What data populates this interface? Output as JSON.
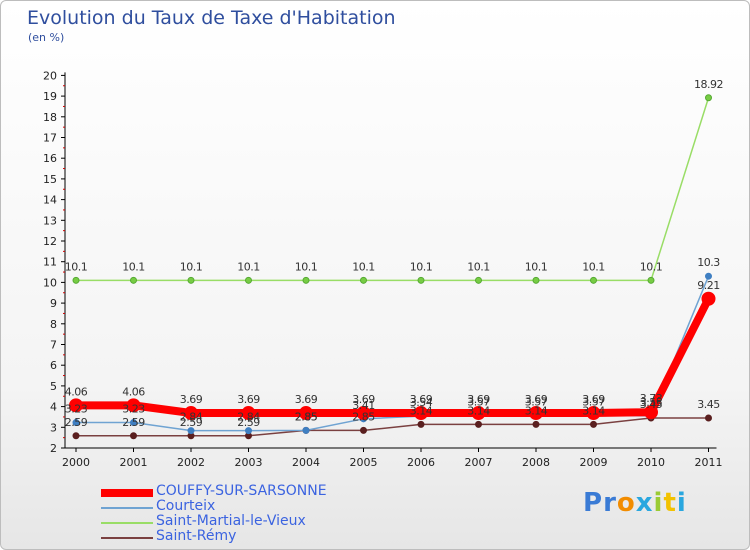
{
  "page": {
    "title": "Evolution du Taux de Taxe d'Habitation",
    "unit_label": "(en %)",
    "brand": "Proxiti"
  },
  "colors": {
    "COUFFY-SUR-SARSONNE": "#ff0000",
    "Courteix": "#6fa3d2",
    "Saint-Martial-le-Vieux": "#99dd66",
    "Saint-Rémy": "#7a4040",
    "title": "#2f4e9e",
    "legend_text": "#3b63e0"
  },
  "chart_data": {
    "type": "line",
    "title": "Evolution du Taux de Taxe d'Habitation",
    "ylabel": "(en %)",
    "xlabel": "",
    "categories": [
      "2000",
      "2001",
      "2002",
      "2003",
      "2004",
      "2005",
      "2006",
      "2007",
      "2008",
      "2009",
      "2010",
      "2011"
    ],
    "ylim": [
      2,
      20
    ],
    "yticks": [
      "2",
      "3",
      "4",
      "5",
      "6",
      "7",
      "8",
      "9",
      "10",
      "11",
      "12",
      "13",
      "14",
      "15",
      "16",
      "17",
      "18",
      "19",
      "20"
    ],
    "grid": false,
    "legend_position": "bottom-left",
    "series": [
      {
        "name": "COUFFY-SUR-SARSONNE",
        "values": [
          4.06,
          4.06,
          3.69,
          3.69,
          3.69,
          3.69,
          3.69,
          3.69,
          3.69,
          3.69,
          3.73,
          9.21
        ],
        "labels": [
          "4.06",
          "4.06",
          "3.69",
          "3.69",
          "3.69",
          "3.69",
          "3.69",
          "3.69",
          "3.69",
          "3.69",
          "3.73",
          "9.21"
        ]
      },
      {
        "name": "Courteix",
        "values": [
          3.23,
          3.23,
          2.84,
          2.84,
          2.85,
          3.41,
          3.54,
          3.57,
          3.57,
          3.57,
          3.55,
          10.3
        ],
        "labels": [
          "3.23",
          "3.23",
          "2.84",
          "2.84",
          "2.85",
          "3.41",
          "3.54",
          "3.57",
          "3.57",
          "3.57",
          "3.55",
          "10.3"
        ]
      },
      {
        "name": "Saint-Martial-le-Vieux",
        "values": [
          10.1,
          10.1,
          10.1,
          10.1,
          10.1,
          10.1,
          10.1,
          10.1,
          10.1,
          10.1,
          10.1,
          18.92
        ],
        "labels": [
          "10.1",
          "10.1",
          "10.1",
          "10.1",
          "10.1",
          "10.1",
          "10.1",
          "10.1",
          "10.1",
          "10.1",
          "10.1",
          "18.92"
        ]
      },
      {
        "name": "Saint-Rémy",
        "values": [
          2.59,
          2.59,
          2.59,
          2.59,
          2.85,
          2.85,
          3.14,
          3.14,
          3.14,
          3.14,
          3.45,
          3.45
        ],
        "labels": [
          "2.59",
          "2.59",
          "2.59",
          "2.59",
          "2.85",
          "2.85",
          "3.14",
          "3.14",
          "3.14",
          "3.14",
          "3.45",
          "3.45"
        ]
      }
    ]
  }
}
